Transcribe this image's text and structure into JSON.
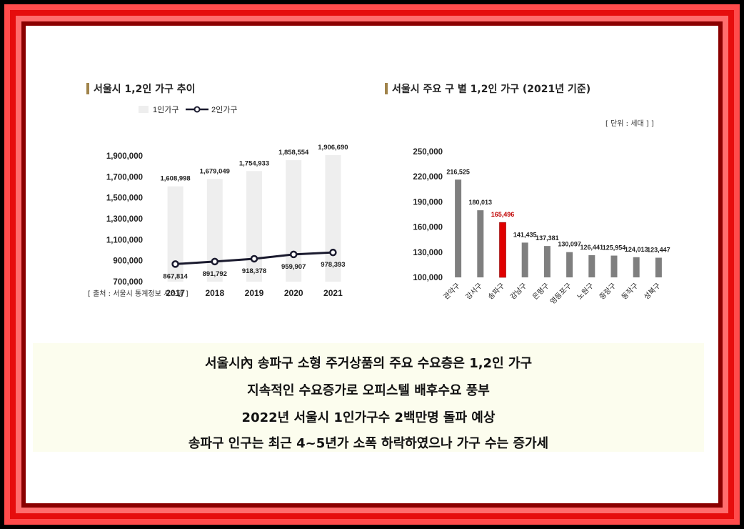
{
  "chart_data": [
    {
      "type": "bar+line",
      "title": "서울시 1,2인 가구 추이",
      "legend": [
        "1인가구",
        "2인가구"
      ],
      "legend_position": "top",
      "categories": [
        "2017",
        "2018",
        "2019",
        "2020",
        "2021"
      ],
      "series": [
        {
          "name": "1인가구",
          "type": "bar",
          "values": [
            1608998,
            1679049,
            1754933,
            1858554,
            1906690
          ],
          "labels": [
            "1,608,998",
            "1,679,049",
            "1,754,933",
            "1,858,554",
            "1,906,690"
          ],
          "color": "#eeeeee"
        },
        {
          "name": "2인가구",
          "type": "line",
          "values": [
            867814,
            891792,
            918378,
            959907,
            978393
          ],
          "labels": [
            "867,814",
            "891,792",
            "918,378",
            "959,907",
            "978,393"
          ],
          "color": "#1a1a2e"
        }
      ],
      "yticks": [
        "1,900,000",
        "1,700,000",
        "1,500,000",
        "1,300,000",
        "1,100,000",
        "900,000",
        "700,000"
      ],
      "ylim": [
        700000,
        1900000
      ],
      "grid": false,
      "source": "[ 출처 : 서울시 통계정보 시스템 ]"
    },
    {
      "type": "bar",
      "title": "서울시 주요 구 별 1,2인 가구 (2021년 기준)",
      "unit": "[ 단위 : 세대 ] ]",
      "categories": [
        "관악구",
        "강서구",
        "송파구",
        "강남구",
        "은평구",
        "영등포구",
        "노원구",
        "중랑구",
        "동작구",
        "성북구"
      ],
      "values": [
        216525,
        180013,
        165496,
        141435,
        137381,
        130097,
        126441,
        125954,
        124013,
        123447
      ],
      "labels": [
        "216,525",
        "180,013",
        "165,496",
        "141,435",
        "137,381",
        "130,097",
        "126,441",
        "125,954",
        "124,013",
        "123,447"
      ],
      "highlight_index": 2,
      "bar_color": "#7f7f7f",
      "highlight_color": "#e00000",
      "highlight_label_color": "#c00000",
      "yticks": [
        "250,000",
        "220,000",
        "190,000",
        "160,000",
        "130,000",
        "100,000"
      ],
      "ylim": [
        100000,
        250000
      ],
      "grid": false
    }
  ],
  "summary": {
    "line1": "서울시內 송파구 소형 주거상품의 주요 수요층은 1,2인 가구",
    "line2": "지속적인 수요증가로 오피스텔 배후수요 풍부",
    "line3": "2022년 서울시 1인가구수 2백만명 돌파 예상",
    "line4": "송파구 인구는 최근 4~5년가 소폭 하락하였으나 가구 수는 증가세"
  }
}
